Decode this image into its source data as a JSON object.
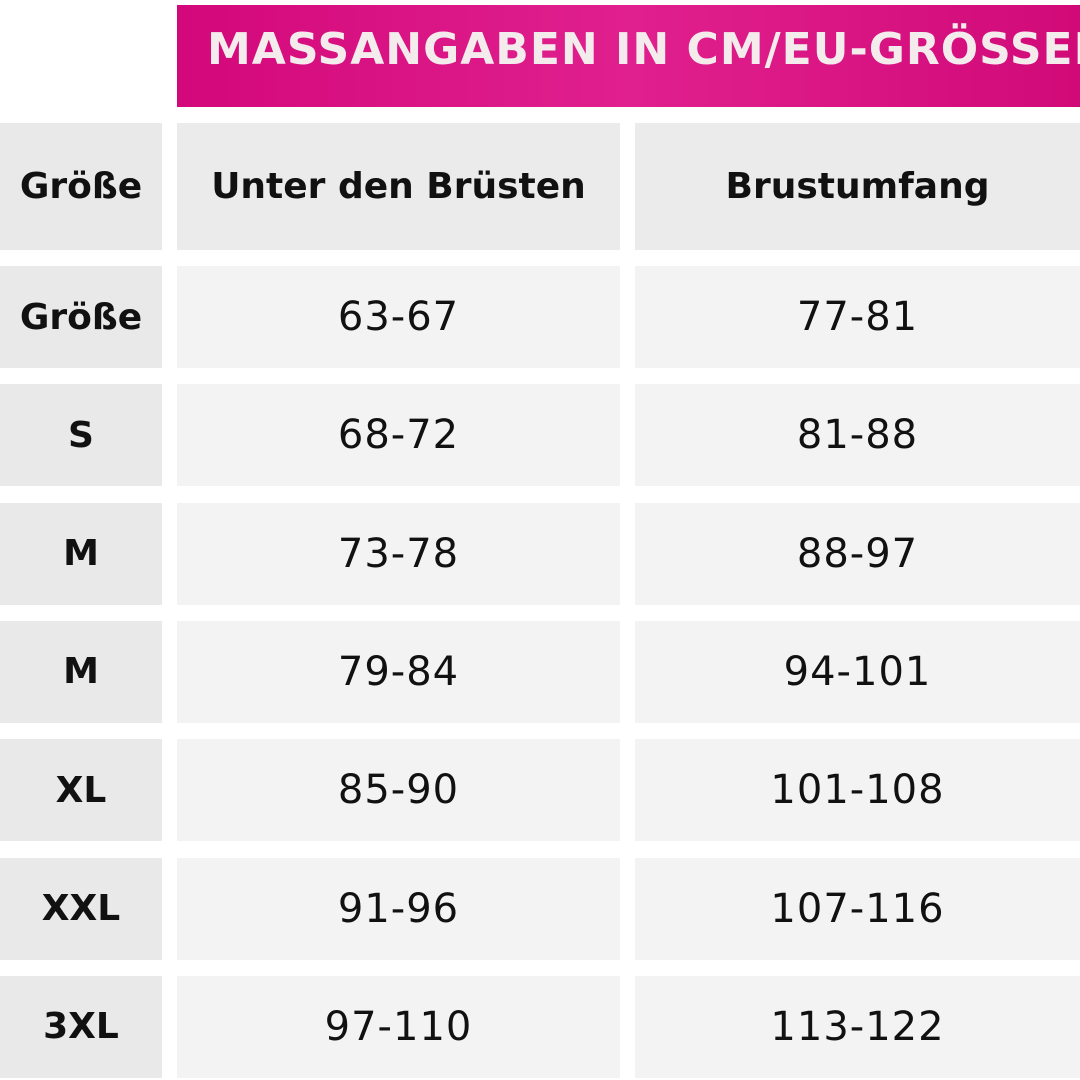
{
  "table": {
    "title": "MASSANGABEN IN CM/EU-GRÖSSEN",
    "header": [
      "Größe",
      "Unter den Brüsten",
      "Brustumfang"
    ],
    "rows": [
      [
        "Größe",
        "63-67",
        "77-81"
      ],
      [
        "S",
        "68-72",
        "81-88"
      ],
      [
        "M",
        "73-78",
        "88-97"
      ],
      [
        "M",
        "79-84",
        "94-101"
      ],
      [
        "XL",
        "85-90",
        "101-108"
      ],
      [
        "XXL",
        "91-96",
        "107-116"
      ],
      [
        "3XL",
        "97-110",
        "113-122"
      ]
    ]
  }
}
